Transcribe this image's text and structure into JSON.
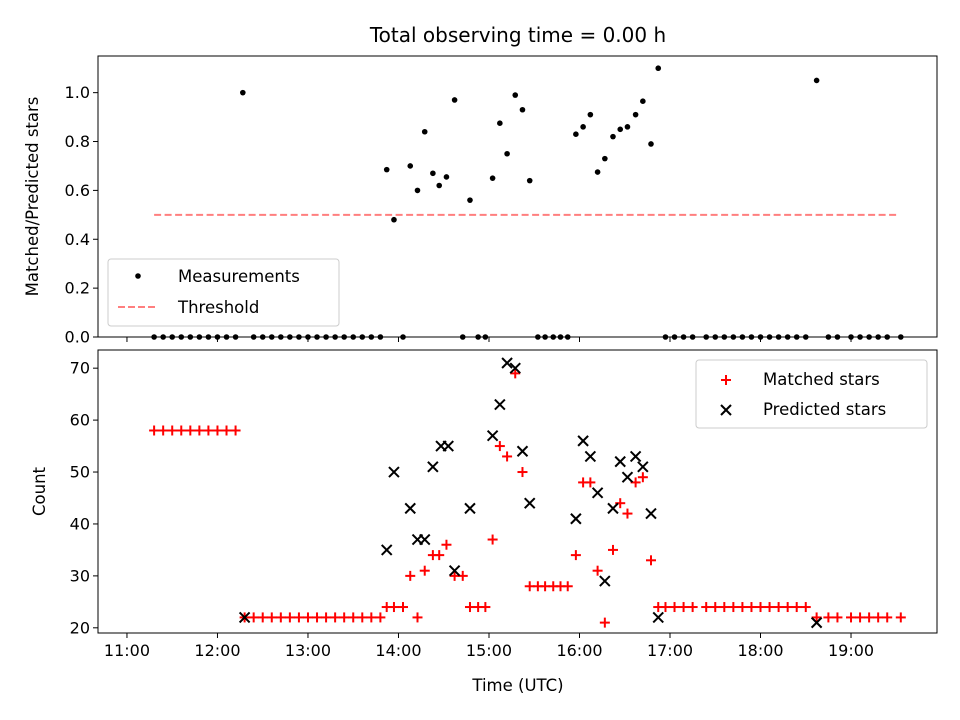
{
  "chart_data": [
    {
      "type": "scatter",
      "title": "Total observing time = 0.00 h",
      "xlabel": "",
      "ylabel": "Matched/Predicted stars",
      "xlim": [
        10.68,
        19.95
      ],
      "ylim": [
        0.0,
        1.15
      ],
      "yticks": [
        0.0,
        0.2,
        0.4,
        0.6,
        0.8,
        1.0
      ],
      "ytick_labels": [
        "0.0",
        "0.2",
        "0.4",
        "0.6",
        "0.8",
        "1.0"
      ],
      "legend_location": "lower-left",
      "colors": {
        "measurements": "#000000",
        "threshold": "#ff7f7f"
      },
      "series": [
        {
          "name": "Measurements",
          "marker": "dot",
          "points": [
            [
              11.3,
              0
            ],
            [
              11.4,
              0
            ],
            [
              11.5,
              0
            ],
            [
              11.6,
              0
            ],
            [
              11.7,
              0
            ],
            [
              11.8,
              0
            ],
            [
              11.9,
              0
            ],
            [
              12.0,
              0
            ],
            [
              12.1,
              0
            ],
            [
              12.2,
              0
            ],
            [
              12.28,
              1.0
            ],
            [
              12.4,
              0
            ],
            [
              12.5,
              0
            ],
            [
              12.6,
              0
            ],
            [
              12.7,
              0
            ],
            [
              12.8,
              0
            ],
            [
              12.9,
              0
            ],
            [
              13.0,
              0
            ],
            [
              13.1,
              0
            ],
            [
              13.2,
              0
            ],
            [
              13.3,
              0
            ],
            [
              13.4,
              0
            ],
            [
              13.5,
              0
            ],
            [
              13.6,
              0
            ],
            [
              13.7,
              0
            ],
            [
              13.8,
              0
            ],
            [
              13.87,
              0.685
            ],
            [
              13.95,
              0.48
            ],
            [
              14.05,
              0
            ],
            [
              14.13,
              0.7
            ],
            [
              14.21,
              0.6
            ],
            [
              14.29,
              0.84
            ],
            [
              14.38,
              0.67
            ],
            [
              14.45,
              0.62
            ],
            [
              14.53,
              0.655
            ],
            [
              14.62,
              0.97
            ],
            [
              14.71,
              0
            ],
            [
              14.79,
              0.56
            ],
            [
              14.88,
              0
            ],
            [
              14.96,
              0
            ],
            [
              15.04,
              0.65
            ],
            [
              15.12,
              0.875
            ],
            [
              15.2,
              0.75
            ],
            [
              15.29,
              0.99
            ],
            [
              15.37,
              0.93
            ],
            [
              15.45,
              0.64
            ],
            [
              15.54,
              0
            ],
            [
              15.62,
              0
            ],
            [
              15.71,
              0
            ],
            [
              15.79,
              0
            ],
            [
              15.87,
              0
            ],
            [
              15.96,
              0.83
            ],
            [
              16.04,
              0.86
            ],
            [
              16.12,
              0.91
            ],
            [
              16.2,
              0.675
            ],
            [
              16.28,
              0.73
            ],
            [
              16.37,
              0.82
            ],
            [
              16.45,
              0.85
            ],
            [
              16.53,
              0.86
            ],
            [
              16.62,
              0.91
            ],
            [
              16.7,
              0.965
            ],
            [
              16.79,
              0.79
            ],
            [
              16.87,
              1.1
            ],
            [
              16.95,
              0
            ],
            [
              17.05,
              0
            ],
            [
              17.15,
              0
            ],
            [
              17.25,
              0
            ],
            [
              17.4,
              0
            ],
            [
              17.5,
              0
            ],
            [
              17.6,
              0
            ],
            [
              17.7,
              0
            ],
            [
              17.8,
              0
            ],
            [
              17.9,
              0
            ],
            [
              18.0,
              0
            ],
            [
              18.1,
              0
            ],
            [
              18.2,
              0
            ],
            [
              18.3,
              0
            ],
            [
              18.4,
              0
            ],
            [
              18.5,
              0
            ],
            [
              18.62,
              1.05
            ],
            [
              18.75,
              0
            ],
            [
              18.85,
              0
            ],
            [
              19.0,
              0
            ],
            [
              19.1,
              0
            ],
            [
              19.2,
              0
            ],
            [
              19.3,
              0
            ],
            [
              19.4,
              0
            ],
            [
              19.55,
              0
            ]
          ]
        },
        {
          "name": "Threshold",
          "marker": "dashed-line",
          "points": [
            [
              11.3,
              0.5
            ],
            [
              19.5,
              0.5
            ]
          ]
        }
      ]
    },
    {
      "type": "scatter",
      "title": "",
      "xlabel": "Time (UTC)",
      "ylabel": "Count",
      "xlim": [
        10.68,
        19.95
      ],
      "ylim": [
        19.0,
        73.5
      ],
      "xticks": [
        11,
        12,
        13,
        14,
        15,
        16,
        17,
        18,
        19
      ],
      "xtick_labels": [
        "11:00",
        "12:00",
        "13:00",
        "14:00",
        "15:00",
        "16:00",
        "17:00",
        "18:00",
        "19:00"
      ],
      "yticks": [
        20,
        30,
        40,
        50,
        60,
        70
      ],
      "ytick_labels": [
        "20",
        "30",
        "40",
        "50",
        "60",
        "70"
      ],
      "legend_location": "upper-right",
      "colors": {
        "matched": "#ff0000",
        "predicted": "#000000"
      },
      "series": [
        {
          "name": "Matched stars",
          "marker": "plus",
          "points": [
            [
              11.3,
              58
            ],
            [
              11.4,
              58
            ],
            [
              11.5,
              58
            ],
            [
              11.6,
              58
            ],
            [
              11.7,
              58
            ],
            [
              11.8,
              58
            ],
            [
              11.9,
              58
            ],
            [
              12.0,
              58
            ],
            [
              12.1,
              58
            ],
            [
              12.2,
              58
            ],
            [
              12.3,
              22
            ],
            [
              12.4,
              22
            ],
            [
              12.5,
              22
            ],
            [
              12.6,
              22
            ],
            [
              12.7,
              22
            ],
            [
              12.8,
              22
            ],
            [
              12.9,
              22
            ],
            [
              13.0,
              22
            ],
            [
              13.1,
              22
            ],
            [
              13.2,
              22
            ],
            [
              13.3,
              22
            ],
            [
              13.4,
              22
            ],
            [
              13.5,
              22
            ],
            [
              13.6,
              22
            ],
            [
              13.7,
              22
            ],
            [
              13.8,
              22
            ],
            [
              13.87,
              24
            ],
            [
              13.95,
              24
            ],
            [
              14.05,
              24
            ],
            [
              14.13,
              30
            ],
            [
              14.21,
              22
            ],
            [
              14.29,
              31
            ],
            [
              14.38,
              34
            ],
            [
              14.45,
              34
            ],
            [
              14.53,
              36
            ],
            [
              14.62,
              30
            ],
            [
              14.71,
              30
            ],
            [
              14.79,
              24
            ],
            [
              14.88,
              24
            ],
            [
              14.96,
              24
            ],
            [
              15.04,
              37
            ],
            [
              15.12,
              55
            ],
            [
              15.2,
              53
            ],
            [
              15.29,
              69
            ],
            [
              15.37,
              50
            ],
            [
              15.45,
              28
            ],
            [
              15.54,
              28
            ],
            [
              15.62,
              28
            ],
            [
              15.71,
              28
            ],
            [
              15.79,
              28
            ],
            [
              15.87,
              28
            ],
            [
              15.96,
              34
            ],
            [
              16.04,
              48
            ],
            [
              16.12,
              48
            ],
            [
              16.2,
              31
            ],
            [
              16.28,
              21
            ],
            [
              16.37,
              35
            ],
            [
              16.45,
              44
            ],
            [
              16.53,
              42
            ],
            [
              16.62,
              48
            ],
            [
              16.7,
              49
            ],
            [
              16.79,
              33
            ],
            [
              16.87,
              24
            ],
            [
              16.95,
              24
            ],
            [
              17.05,
              24
            ],
            [
              17.15,
              24
            ],
            [
              17.25,
              24
            ],
            [
              17.4,
              24
            ],
            [
              17.5,
              24
            ],
            [
              17.6,
              24
            ],
            [
              17.7,
              24
            ],
            [
              17.8,
              24
            ],
            [
              17.9,
              24
            ],
            [
              18.0,
              24
            ],
            [
              18.1,
              24
            ],
            [
              18.2,
              24
            ],
            [
              18.3,
              24
            ],
            [
              18.4,
              24
            ],
            [
              18.5,
              24
            ],
            [
              18.62,
              22
            ],
            [
              18.75,
              22
            ],
            [
              18.85,
              22
            ],
            [
              19.0,
              22
            ],
            [
              19.1,
              22
            ],
            [
              19.2,
              22
            ],
            [
              19.3,
              22
            ],
            [
              19.4,
              22
            ],
            [
              19.55,
              22
            ]
          ]
        },
        {
          "name": "Predicted stars",
          "marker": "x",
          "points": [
            [
              12.3,
              22
            ],
            [
              13.87,
              35
            ],
            [
              13.95,
              50
            ],
            [
              14.13,
              43
            ],
            [
              14.21,
              37
            ],
            [
              14.29,
              37
            ],
            [
              14.38,
              51
            ],
            [
              14.47,
              55
            ],
            [
              14.55,
              55
            ],
            [
              14.62,
              31
            ],
            [
              14.79,
              43
            ],
            [
              15.04,
              57
            ],
            [
              15.12,
              63
            ],
            [
              15.2,
              71
            ],
            [
              15.29,
              70
            ],
            [
              15.37,
              54
            ],
            [
              15.45,
              44
            ],
            [
              15.96,
              41
            ],
            [
              16.04,
              56
            ],
            [
              16.12,
              53
            ],
            [
              16.2,
              46
            ],
            [
              16.28,
              29
            ],
            [
              16.37,
              43
            ],
            [
              16.45,
              52
            ],
            [
              16.53,
              49
            ],
            [
              16.62,
              53
            ],
            [
              16.7,
              51
            ],
            [
              16.79,
              42
            ],
            [
              16.87,
              22
            ],
            [
              18.62,
              21
            ]
          ]
        }
      ]
    }
  ]
}
